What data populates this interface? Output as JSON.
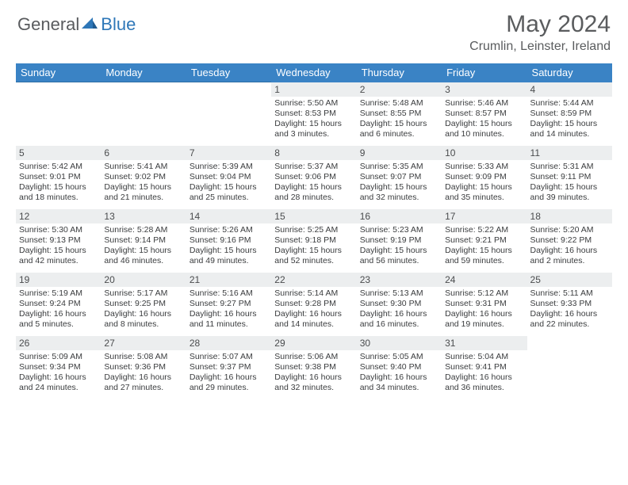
{
  "logo": {
    "general": "General",
    "blue": "Blue"
  },
  "title": "May 2024",
  "location": "Crumlin, Leinster, Ireland",
  "colors": {
    "header_bg": "#3a83c5",
    "header_text": "#ffffff",
    "daynum_bg": "#eceeef",
    "rule": "#2e6da4",
    "text": "#3a3c3e",
    "title_text": "#5a5c5e",
    "logo_blue": "#2e77b8",
    "logo_gray": "#595b5e"
  },
  "day_headers": [
    "Sunday",
    "Monday",
    "Tuesday",
    "Wednesday",
    "Thursday",
    "Friday",
    "Saturday"
  ],
  "weeks": [
    [
      null,
      null,
      null,
      {
        "n": "1",
        "sr": "5:50 AM",
        "ss": "8:53 PM",
        "dl": "15 hours and 3 minutes."
      },
      {
        "n": "2",
        "sr": "5:48 AM",
        "ss": "8:55 PM",
        "dl": "15 hours and 6 minutes."
      },
      {
        "n": "3",
        "sr": "5:46 AM",
        "ss": "8:57 PM",
        "dl": "15 hours and 10 minutes."
      },
      {
        "n": "4",
        "sr": "5:44 AM",
        "ss": "8:59 PM",
        "dl": "15 hours and 14 minutes."
      }
    ],
    [
      {
        "n": "5",
        "sr": "5:42 AM",
        "ss": "9:01 PM",
        "dl": "15 hours and 18 minutes."
      },
      {
        "n": "6",
        "sr": "5:41 AM",
        "ss": "9:02 PM",
        "dl": "15 hours and 21 minutes."
      },
      {
        "n": "7",
        "sr": "5:39 AM",
        "ss": "9:04 PM",
        "dl": "15 hours and 25 minutes."
      },
      {
        "n": "8",
        "sr": "5:37 AM",
        "ss": "9:06 PM",
        "dl": "15 hours and 28 minutes."
      },
      {
        "n": "9",
        "sr": "5:35 AM",
        "ss": "9:07 PM",
        "dl": "15 hours and 32 minutes."
      },
      {
        "n": "10",
        "sr": "5:33 AM",
        "ss": "9:09 PM",
        "dl": "15 hours and 35 minutes."
      },
      {
        "n": "11",
        "sr": "5:31 AM",
        "ss": "9:11 PM",
        "dl": "15 hours and 39 minutes."
      }
    ],
    [
      {
        "n": "12",
        "sr": "5:30 AM",
        "ss": "9:13 PM",
        "dl": "15 hours and 42 minutes."
      },
      {
        "n": "13",
        "sr": "5:28 AM",
        "ss": "9:14 PM",
        "dl": "15 hours and 46 minutes."
      },
      {
        "n": "14",
        "sr": "5:26 AM",
        "ss": "9:16 PM",
        "dl": "15 hours and 49 minutes."
      },
      {
        "n": "15",
        "sr": "5:25 AM",
        "ss": "9:18 PM",
        "dl": "15 hours and 52 minutes."
      },
      {
        "n": "16",
        "sr": "5:23 AM",
        "ss": "9:19 PM",
        "dl": "15 hours and 56 minutes."
      },
      {
        "n": "17",
        "sr": "5:22 AM",
        "ss": "9:21 PM",
        "dl": "15 hours and 59 minutes."
      },
      {
        "n": "18",
        "sr": "5:20 AM",
        "ss": "9:22 PM",
        "dl": "16 hours and 2 minutes."
      }
    ],
    [
      {
        "n": "19",
        "sr": "5:19 AM",
        "ss": "9:24 PM",
        "dl": "16 hours and 5 minutes."
      },
      {
        "n": "20",
        "sr": "5:17 AM",
        "ss": "9:25 PM",
        "dl": "16 hours and 8 minutes."
      },
      {
        "n": "21",
        "sr": "5:16 AM",
        "ss": "9:27 PM",
        "dl": "16 hours and 11 minutes."
      },
      {
        "n": "22",
        "sr": "5:14 AM",
        "ss": "9:28 PM",
        "dl": "16 hours and 14 minutes."
      },
      {
        "n": "23",
        "sr": "5:13 AM",
        "ss": "9:30 PM",
        "dl": "16 hours and 16 minutes."
      },
      {
        "n": "24",
        "sr": "5:12 AM",
        "ss": "9:31 PM",
        "dl": "16 hours and 19 minutes."
      },
      {
        "n": "25",
        "sr": "5:11 AM",
        "ss": "9:33 PM",
        "dl": "16 hours and 22 minutes."
      }
    ],
    [
      {
        "n": "26",
        "sr": "5:09 AM",
        "ss": "9:34 PM",
        "dl": "16 hours and 24 minutes."
      },
      {
        "n": "27",
        "sr": "5:08 AM",
        "ss": "9:36 PM",
        "dl": "16 hours and 27 minutes."
      },
      {
        "n": "28",
        "sr": "5:07 AM",
        "ss": "9:37 PM",
        "dl": "16 hours and 29 minutes."
      },
      {
        "n": "29",
        "sr": "5:06 AM",
        "ss": "9:38 PM",
        "dl": "16 hours and 32 minutes."
      },
      {
        "n": "30",
        "sr": "5:05 AM",
        "ss": "9:40 PM",
        "dl": "16 hours and 34 minutes."
      },
      {
        "n": "31",
        "sr": "5:04 AM",
        "ss": "9:41 PM",
        "dl": "16 hours and 36 minutes."
      },
      null
    ]
  ],
  "labels": {
    "sunrise": "Sunrise:",
    "sunset": "Sunset:",
    "daylight": "Daylight:"
  }
}
